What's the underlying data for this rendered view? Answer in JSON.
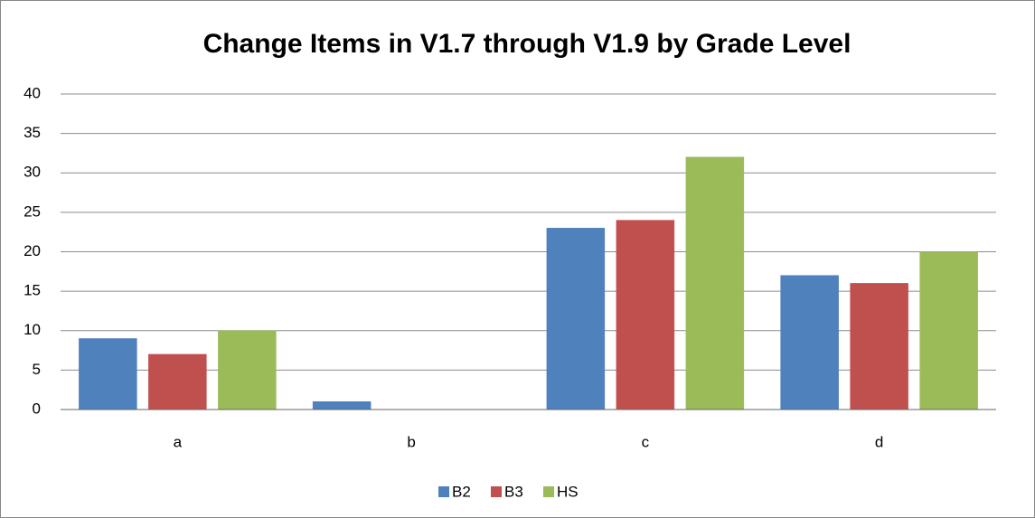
{
  "chart_data": {
    "type": "bar",
    "title": "Change Items in V1.7 through V1.9 by Grade Level",
    "categories": [
      "a",
      "b",
      "c",
      "d"
    ],
    "series": [
      {
        "name": "B2",
        "color": "#4f81bd",
        "values": [
          9,
          1,
          23,
          17
        ]
      },
      {
        "name": "B3",
        "color": "#c0504d",
        "values": [
          7,
          0,
          24,
          16
        ]
      },
      {
        "name": "HS",
        "color": "#9bbb59",
        "values": [
          10,
          0,
          32,
          20
        ]
      }
    ],
    "ylim": [
      0,
      40
    ],
    "yticks": [
      0,
      5,
      10,
      15,
      20,
      25,
      30,
      35,
      40
    ],
    "grid": true,
    "legend": "bottom"
  }
}
